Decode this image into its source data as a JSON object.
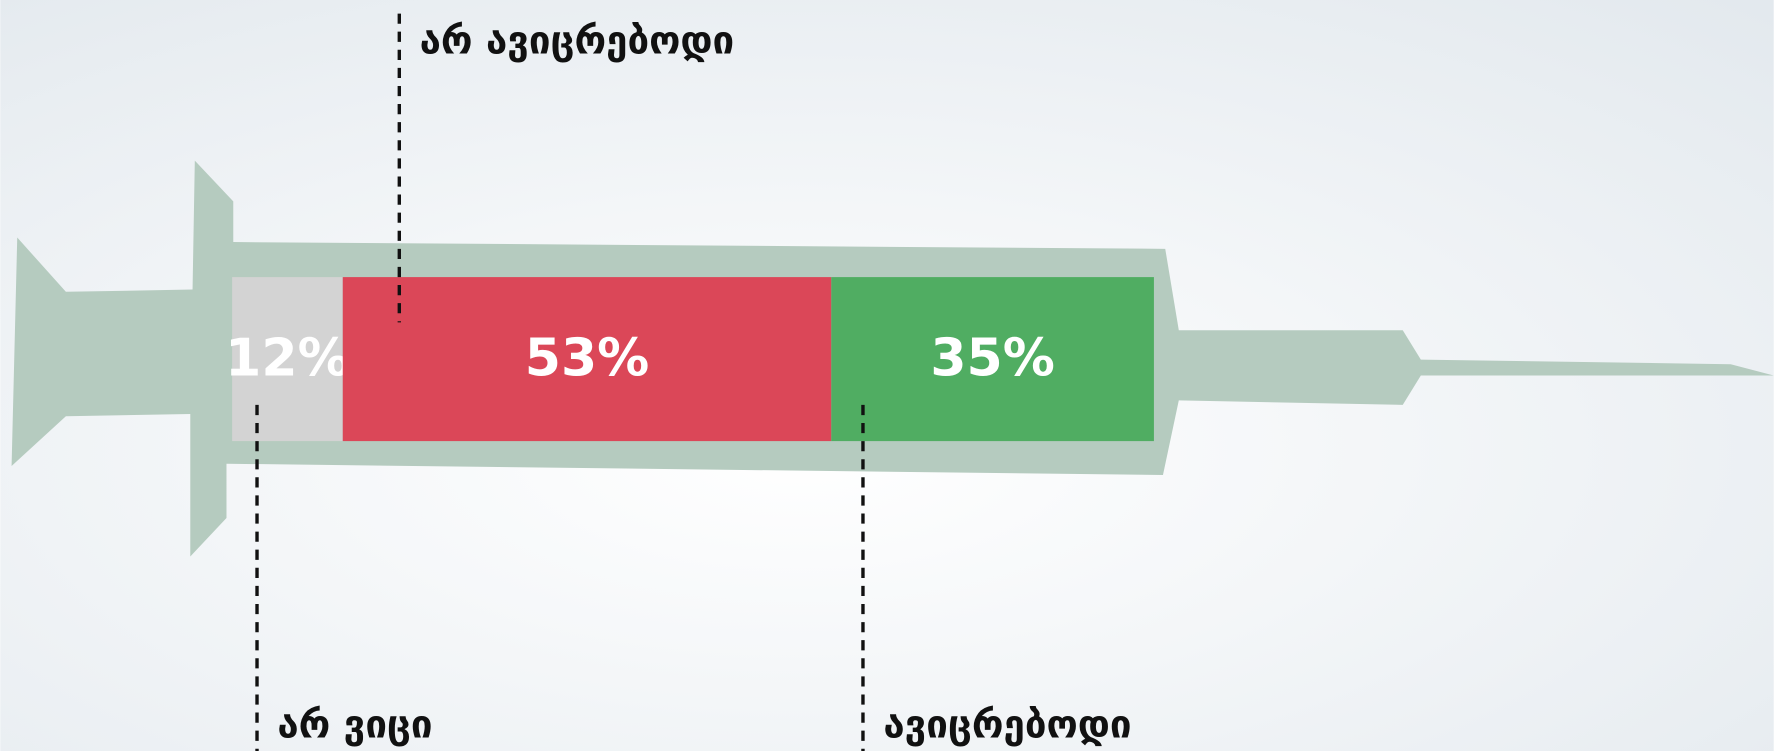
{
  "chart_data": {
    "type": "bar",
    "stacked": true,
    "orientation": "horizontal",
    "series": [
      {
        "name": "არ ვიცი",
        "color": "#d3d3d3",
        "values": [
          12
        ],
        "value_labels": [
          "12%"
        ]
      },
      {
        "name": "არ ავიცრებოდი",
        "color": "#db4758",
        "values": [
          53
        ],
        "value_labels": [
          "53%"
        ]
      },
      {
        "name": "ავიცრებოდი",
        "color": "#50ad62",
        "values": [
          35
        ],
        "value_labels": [
          "35%"
        ]
      }
    ]
  }
}
